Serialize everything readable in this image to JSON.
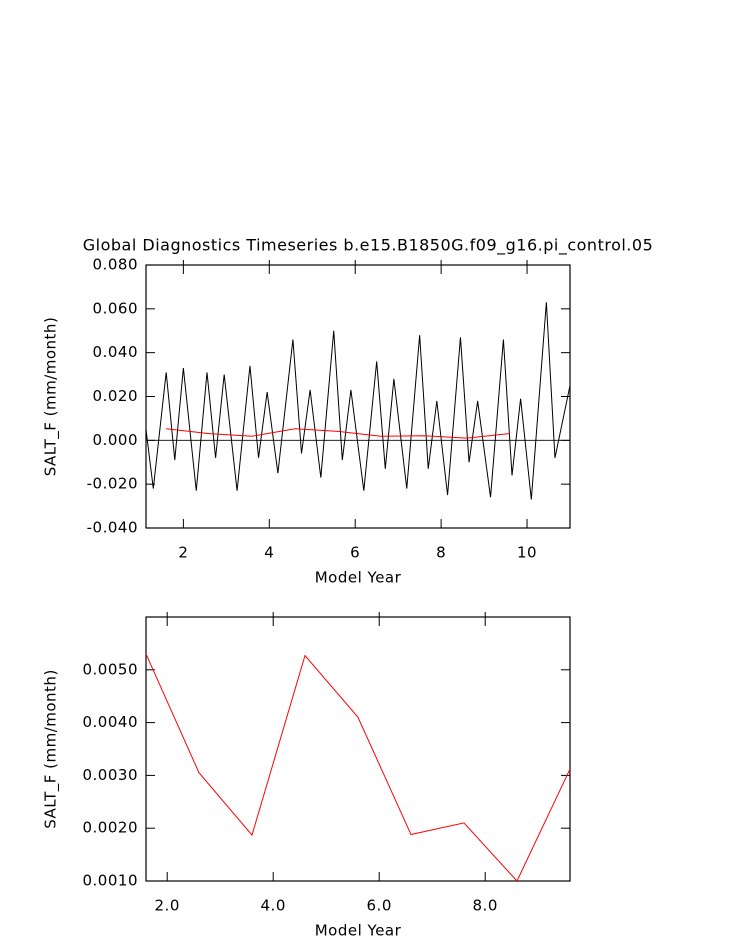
{
  "chart_data": [
    {
      "type": "line",
      "title": "Global Diagnostics Timeseries b.e15.B1850G.f09_g16.pi_control.05",
      "x_label": "Model Year",
      "y_label": "SALT_F (mm/month)",
      "xlim": [
        1.13,
        11.0
      ],
      "ylim": [
        -0.04,
        0.08
      ],
      "xticks": [
        2,
        4,
        6,
        8,
        10
      ],
      "yticks": [
        {
          "value": -0.04,
          "label": "-0.040"
        },
        {
          "value": -0.02,
          "label": "-0.020"
        },
        {
          "value": 0,
          "label": "0.000"
        },
        {
          "value": 0.02,
          "label": "0.020"
        },
        {
          "value": 0.04,
          "label": "0.040"
        },
        {
          "value": 0.06,
          "label": "0.060"
        },
        {
          "value": 0.08,
          "label": "0.080"
        }
      ],
      "series": [
        {
          "color": "#000000",
          "x": [
            1.13,
            1.3,
            1.6,
            1.8,
            2.0,
            2.3,
            2.55,
            2.75,
            2.95,
            3.25,
            3.55,
            3.75,
            3.95,
            4.2,
            4.55,
            4.75,
            4.95,
            5.2,
            5.5,
            5.7,
            5.9,
            6.2,
            6.5,
            6.7,
            6.9,
            7.2,
            7.5,
            7.7,
            7.9,
            8.15,
            8.45,
            8.65,
            8.85,
            9.15,
            9.45,
            9.65,
            9.85,
            10.1,
            10.45,
            10.65,
            11.0
          ],
          "values": [
            0.005,
            -0.022,
            0.031,
            -0.009,
            0.033,
            -0.023,
            0.031,
            -0.008,
            0.03,
            -0.023,
            0.034,
            -0.008,
            0.022,
            -0.015,
            0.046,
            -0.006,
            0.023,
            -0.017,
            0.05,
            -0.009,
            0.023,
            -0.023,
            0.036,
            -0.013,
            0.028,
            -0.022,
            0.048,
            -0.013,
            0.018,
            -0.025,
            0.047,
            -0.01,
            0.018,
            -0.026,
            0.046,
            -0.016,
            0.019,
            -0.027,
            0.063,
            -0.008,
            0.025
          ]
        },
        {
          "color": "#ff0000",
          "x": [
            1.6,
            2.6,
            3.6,
            4.6,
            5.6,
            6.6,
            7.6,
            8.6,
            9.6
          ],
          "values": [
            0.0053,
            0.00305,
            0.00187,
            0.00527,
            0.0041,
            0.00188,
            0.0021,
            0.001,
            0.00312
          ]
        }
      ]
    },
    {
      "type": "line",
      "x_label": "Model Year",
      "y_label": "SALT_F (mm/month)",
      "xlim": [
        1.6,
        9.6
      ],
      "ylim": [
        0.001,
        0.006
      ],
      "xticks": [
        {
          "value": 2,
          "label": "2.0"
        },
        {
          "value": 4,
          "label": "4.0"
        },
        {
          "value": 6,
          "label": "6.0"
        },
        {
          "value": 8,
          "label": "8.0"
        }
      ],
      "yticks": [
        {
          "value": 0.001,
          "label": "0.0010"
        },
        {
          "value": 0.002,
          "label": "0.0020"
        },
        {
          "value": 0.003,
          "label": "0.0030"
        },
        {
          "value": 0.004,
          "label": "0.0040"
        },
        {
          "value": 0.005,
          "label": "0.0050"
        }
      ],
      "series": [
        {
          "color": "#ff0000",
          "x": [
            1.6,
            2.6,
            3.6,
            4.6,
            5.6,
            6.6,
            7.6,
            8.6,
            9.6
          ],
          "values": [
            0.0053,
            0.00305,
            0.00187,
            0.00527,
            0.0041,
            0.00188,
            0.0021,
            0.001,
            0.00312
          ]
        }
      ]
    }
  ]
}
